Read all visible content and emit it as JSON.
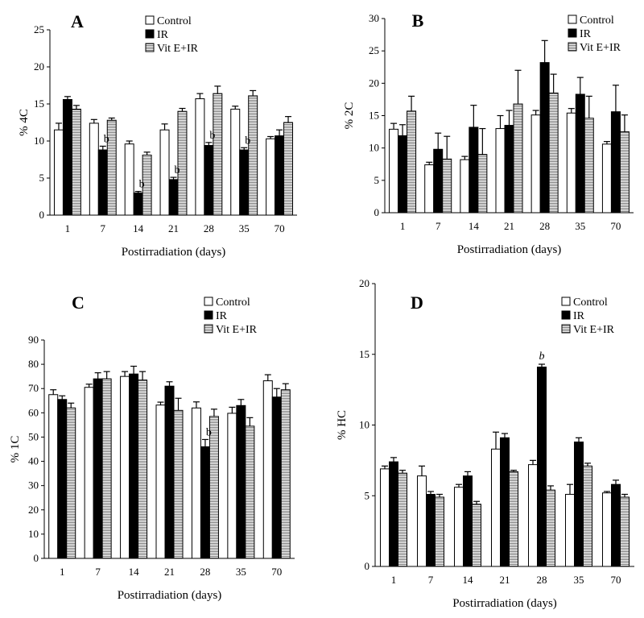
{
  "chart_data": [
    {
      "panel_label": "A",
      "type": "bar",
      "ylabel": "% 4C",
      "xlabel": "Postirradiation (days)",
      "ylim": [
        0,
        25
      ],
      "yticks": [
        0,
        5,
        10,
        15,
        20,
        25
      ],
      "categories": [
        "1",
        "7",
        "14",
        "21",
        "28",
        "35",
        "70"
      ],
      "legend_position": "top-right",
      "series": [
        {
          "name": "Control",
          "values": [
            11.5,
            12.4,
            9.6,
            11.5,
            15.7,
            14.3,
            10.3
          ],
          "errors": [
            0.9,
            0.5,
            0.4,
            0.8,
            0.7,
            0.4,
            0.3
          ]
        },
        {
          "name": "IR",
          "values": [
            15.6,
            8.8,
            3.0,
            4.8,
            9.4,
            8.8,
            10.7
          ],
          "errors": [
            0.4,
            0.5,
            0.2,
            0.3,
            0.4,
            0.3,
            0.8
          ]
        },
        {
          "name": "Vit E+IR",
          "values": [
            14.3,
            12.8,
            8.1,
            14.0,
            16.4,
            16.1,
            12.5
          ],
          "errors": [
            0.5,
            0.3,
            0.4,
            0.4,
            1.0,
            0.7,
            0.8
          ]
        }
      ],
      "annotations": [
        {
          "text": "b",
          "category": "7"
        },
        {
          "text": "b",
          "category": "14"
        },
        {
          "text": "b",
          "category": "21"
        },
        {
          "text": "b",
          "category": "28"
        },
        {
          "text": "b",
          "category": "35"
        }
      ]
    },
    {
      "panel_label": "B",
      "type": "bar",
      "ylabel": "% 2C",
      "xlabel": "Postirradiation (days)",
      "ylim": [
        0,
        30
      ],
      "yticks": [
        0,
        5,
        10,
        15,
        20,
        25,
        30
      ],
      "categories": [
        "1",
        "7",
        "14",
        "21",
        "28",
        "35",
        "70"
      ],
      "legend_position": "top-right",
      "series": [
        {
          "name": "Control",
          "values": [
            12.9,
            7.4,
            8.2,
            13.0,
            15.1,
            15.4,
            10.6
          ],
          "errors": [
            0.9,
            0.4,
            0.5,
            2.0,
            0.7,
            0.7,
            0.4
          ]
        },
        {
          "name": "IR",
          "values": [
            11.9,
            9.8,
            13.2,
            13.5,
            23.2,
            18.3,
            15.6
          ],
          "errors": [
            1.7,
            2.5,
            3.4,
            2.3,
            3.4,
            2.6,
            4.1
          ]
        },
        {
          "name": "Vit E+IR",
          "values": [
            15.7,
            8.3,
            9.0,
            16.8,
            18.5,
            14.6,
            12.5
          ],
          "errors": [
            2.3,
            3.5,
            4.0,
            5.2,
            2.9,
            3.4,
            2.6
          ]
        }
      ],
      "annotations": []
    },
    {
      "panel_label": "C",
      "type": "bar",
      "ylabel": "% 1C",
      "xlabel": "Postirradiation (days)",
      "ylim": [
        0,
        90
      ],
      "yticks": [
        0,
        10,
        20,
        30,
        40,
        50,
        60,
        70,
        80,
        90
      ],
      "categories": [
        "1",
        "7",
        "14",
        "21",
        "28",
        "35",
        "70"
      ],
      "legend_position": "top-right",
      "series": [
        {
          "name": "Control",
          "values": [
            67.5,
            70.5,
            75.0,
            63.2,
            62.0,
            59.8,
            73.2
          ],
          "errors": [
            2.0,
            1.3,
            2.0,
            1.2,
            2.5,
            2.5,
            2.5
          ]
        },
        {
          "name": "IR",
          "values": [
            65.5,
            74.0,
            76.0,
            71.0,
            46.0,
            63.0,
            66.5
          ],
          "errors": [
            1.5,
            2.5,
            3.2,
            1.8,
            3.0,
            2.5,
            3.5
          ]
        },
        {
          "name": "Vit E+IR",
          "values": [
            62.0,
            74.0,
            73.5,
            61.0,
            58.5,
            54.5,
            69.5
          ],
          "errors": [
            2.0,
            3.0,
            3.5,
            5.0,
            3.0,
            3.5,
            2.5
          ]
        }
      ],
      "annotations": [
        {
          "text": "b",
          "category": "28"
        }
      ]
    },
    {
      "panel_label": "D",
      "type": "bar",
      "ylabel": "% HC",
      "xlabel": "Postirradiation (days)",
      "ylim": [
        0,
        20
      ],
      "yticks": [
        0,
        5,
        10,
        15,
        20
      ],
      "categories": [
        "1",
        "7",
        "14",
        "21",
        "28",
        "35",
        "70"
      ],
      "legend_position": "top-right",
      "series": [
        {
          "name": "Control",
          "values": [
            6.9,
            6.4,
            5.6,
            8.3,
            7.2,
            5.1,
            5.2
          ],
          "errors": [
            0.2,
            0.7,
            0.2,
            1.2,
            0.3,
            0.7,
            0.1
          ]
        },
        {
          "name": "IR",
          "values": [
            7.4,
            5.1,
            6.4,
            9.1,
            14.1,
            8.8,
            5.8
          ],
          "errors": [
            0.3,
            0.2,
            0.3,
            0.3,
            0.2,
            0.3,
            0.3
          ]
        },
        {
          "name": "Vit E+IR",
          "values": [
            6.6,
            4.9,
            4.4,
            6.7,
            5.4,
            7.1,
            4.9
          ],
          "errors": [
            0.2,
            0.2,
            0.2,
            0.1,
            0.3,
            0.2,
            0.2
          ]
        }
      ],
      "annotations": [
        {
          "text": "b",
          "category": "28",
          "series": "IR",
          "italic": true
        }
      ]
    }
  ]
}
